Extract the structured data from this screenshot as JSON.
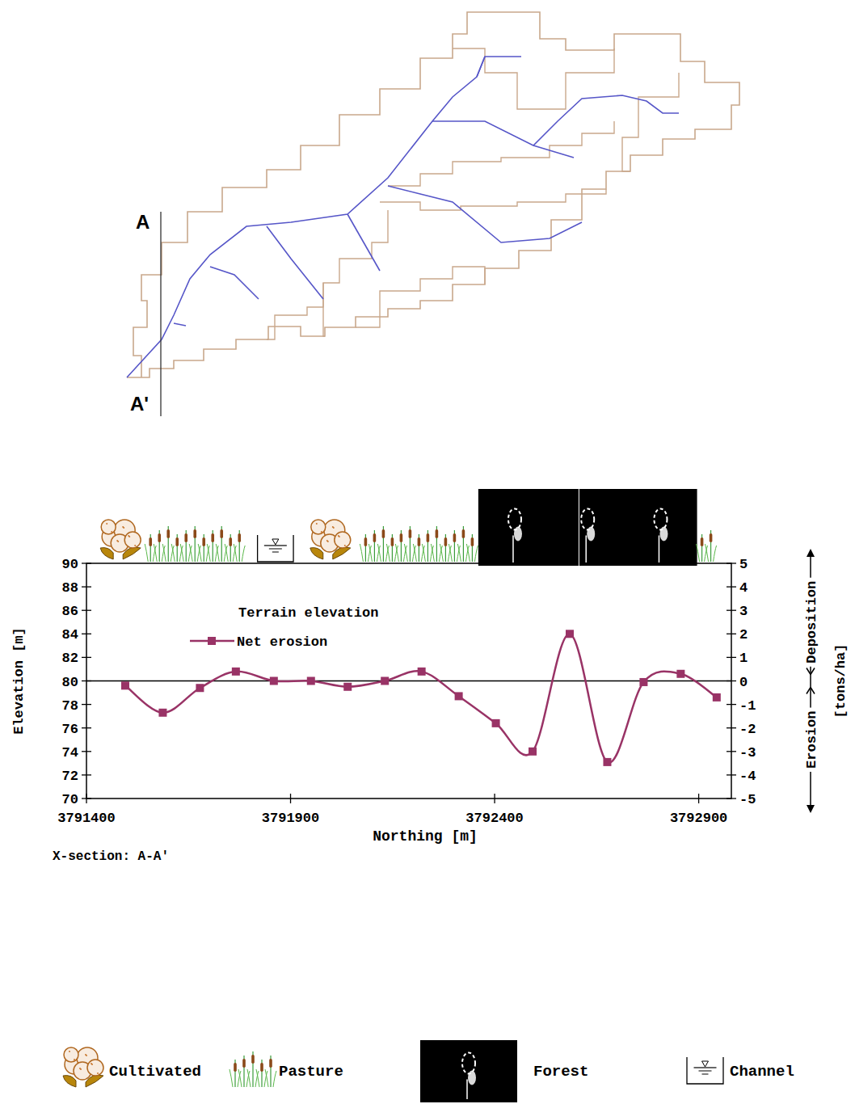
{
  "chart_data": {
    "type": "line",
    "x_label": "Northing [m]",
    "y_label": "Elevation [m]",
    "y2_label": "[tons/ha]",
    "y2_annotations": [
      "Deposition",
      "Erosion"
    ],
    "caption": "X-section: A-A'",
    "x": [
      3791495,
      3791587,
      3791678,
      3791766,
      3791859,
      3791950,
      3792040,
      3792131,
      3792221,
      3792312,
      3792403,
      3792493,
      3792584,
      3792676,
      3792765,
      3792856,
      3792944
    ],
    "series": [
      {
        "name": "Terrain elevation",
        "values": [
          null,
          null,
          null,
          null,
          null,
          null,
          null,
          null,
          null,
          null,
          null,
          null,
          null,
          null,
          null,
          null,
          null
        ]
      },
      {
        "name": "Net erosion",
        "color": "#993366",
        "axis": "y2",
        "marker": "square",
        "values": [
          -0.2,
          -1.35,
          -0.3,
          0.4,
          0,
          0,
          -0.25,
          0,
          0.4,
          -0.65,
          -1.8,
          -3.0,
          2.0,
          -3.45,
          -0.05,
          0.3,
          -0.7
        ]
      }
    ],
    "xlim": [
      3791400,
      3792980
    ],
    "xticks": [
      3791400,
      3791900,
      3792400,
      3792900
    ],
    "ylim": [
      70,
      90
    ],
    "yticks": [
      70,
      72,
      74,
      76,
      78,
      80,
      82,
      84,
      86,
      88,
      90
    ],
    "y2lim": [
      -5,
      5
    ],
    "y2ticks": [
      -5,
      -4,
      -3,
      -2,
      -1,
      0,
      1,
      2,
      3,
      4,
      5
    ],
    "hlines": [
      {
        "axis": "y2",
        "value": 0
      }
    ],
    "grid": false,
    "legend": "top-left",
    "land_use": {
      "classes": [
        "Cultivated",
        "Pasture",
        "Forest",
        "Channel"
      ],
      "strip": [
        {
          "class": "Cultivated",
          "from": 3791426,
          "to": 3791545
        },
        {
          "class": "Pasture",
          "from": 3791545,
          "to": 3791793
        },
        {
          "class": "Channel",
          "from": 3791819,
          "to": 3791907
        },
        {
          "class": "Cultivated",
          "from": 3791927,
          "to": 3792072
        },
        {
          "class": "Pasture",
          "from": 3792072,
          "to": 3792360
        },
        {
          "class": "Forest",
          "from": 3792360,
          "to": 3792896
        },
        {
          "class": "Pasture",
          "from": 3792896,
          "to": 3792940
        }
      ]
    }
  },
  "map": {
    "section_start": "A",
    "section_end": "A'"
  }
}
